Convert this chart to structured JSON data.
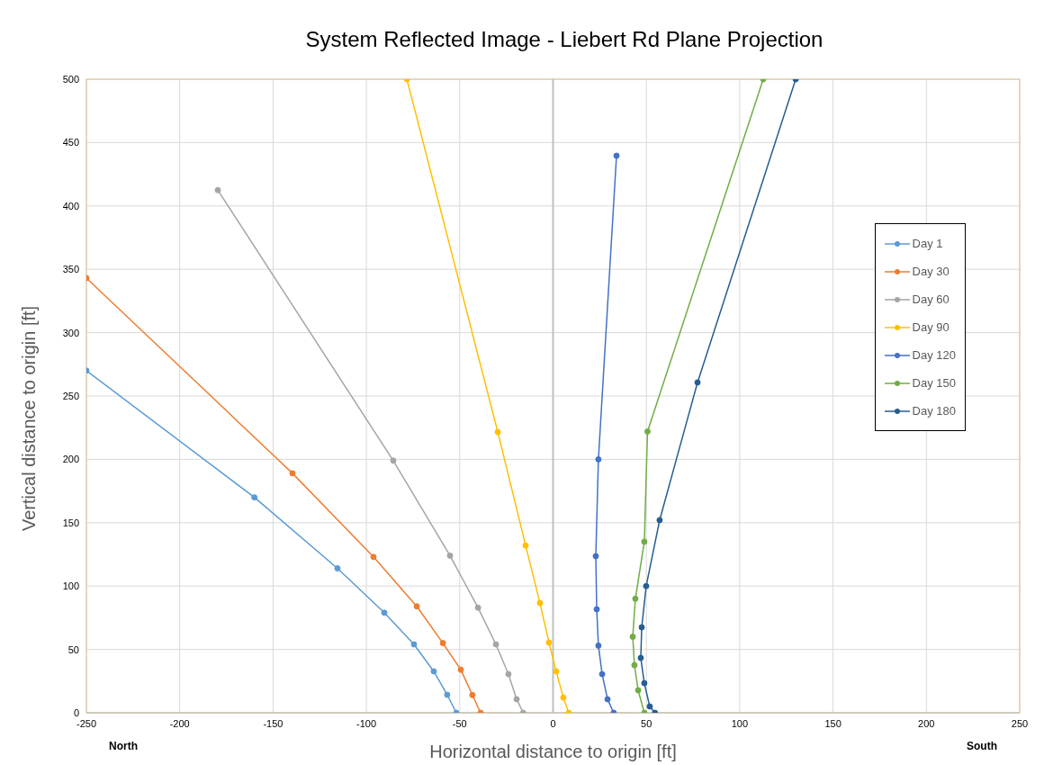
{
  "chart_data": {
    "type": "line",
    "title": "System Reflected Image - Liebert Rd Plane Projection",
    "xlabel": "Horizontal distance to origin [ft]",
    "ylabel": "Vertical distance to origin [ft]",
    "xlim": [
      -250,
      250
    ],
    "xticks": [
      -250,
      -200,
      -150,
      -100,
      -50,
      0,
      50,
      100,
      150,
      200,
      250
    ],
    "ylim": [
      0,
      500
    ],
    "yticks": [
      0,
      50,
      100,
      150,
      200,
      250,
      300,
      350,
      400,
      450,
      500
    ],
    "grid": true,
    "legend": "right",
    "marker": "circle",
    "line_style": "solid",
    "ref_lines": [
      {
        "axis": "x",
        "value": 0,
        "color": "#bfbfbf"
      }
    ],
    "annotations": [
      "North",
      "South"
    ],
    "series": [
      {
        "name": "Day 1",
        "color": "#5b9bd5",
        "x": [
          -250,
          -160,
          -115.5,
          -90.4,
          -74.5,
          -63.9,
          -56.7,
          -51.8
        ],
        "values": [
          270,
          170,
          114,
          79,
          54,
          32.7,
          14.2,
          0
        ]
      },
      {
        "name": "Day 30",
        "color": "#ed7d31",
        "x": [
          -250,
          -139.6,
          -96.2,
          -73,
          -59,
          -49.4,
          -43.2,
          -38.8
        ],
        "values": [
          343,
          189,
          123,
          84,
          55,
          34,
          14,
          0
        ]
      },
      {
        "name": "Day 60",
        "color": "#a5a5a5",
        "x": [
          -179.6,
          -85.6,
          -55.2,
          -40.2,
          -30.6,
          -23.9,
          -19.5,
          -16
        ],
        "values": [
          412.5,
          199,
          124,
          83,
          54,
          30.5,
          10.7,
          0
        ]
      },
      {
        "name": "Day 90",
        "color": "#ffc000",
        "x": [
          -78.3,
          -29.6,
          -14.7,
          -7,
          -2.2,
          1.7,
          5.5,
          8.4
        ],
        "values": [
          500,
          221.6,
          132,
          86.6,
          55.4,
          32.7,
          12,
          0
        ]
      },
      {
        "name": "Day 120",
        "color": "#4472c4",
        "x": [
          34,
          24.3,
          22.9,
          23.4,
          24.3,
          26.3,
          29.2,
          32.5
        ],
        "values": [
          439.6,
          200,
          123.6,
          81.7,
          53,
          30.5,
          10.7,
          0
        ]
      },
      {
        "name": "Day 150",
        "color": "#70ad47",
        "x": [
          112.6,
          50.6,
          48.9,
          44.1,
          42.7,
          43.6,
          45.6,
          48.9
        ],
        "values": [
          500,
          222,
          135,
          90,
          60,
          37.6,
          17.8,
          0
        ]
      },
      {
        "name": "Day 180",
        "color": "#255e91",
        "x": [
          130,
          77.4,
          57.1,
          49.9,
          47.5,
          47,
          48.9,
          51.8,
          54.6
        ],
        "values": [
          500,
          260.7,
          152,
          100,
          67.5,
          43.3,
          23.4,
          5,
          0
        ]
      }
    ]
  }
}
